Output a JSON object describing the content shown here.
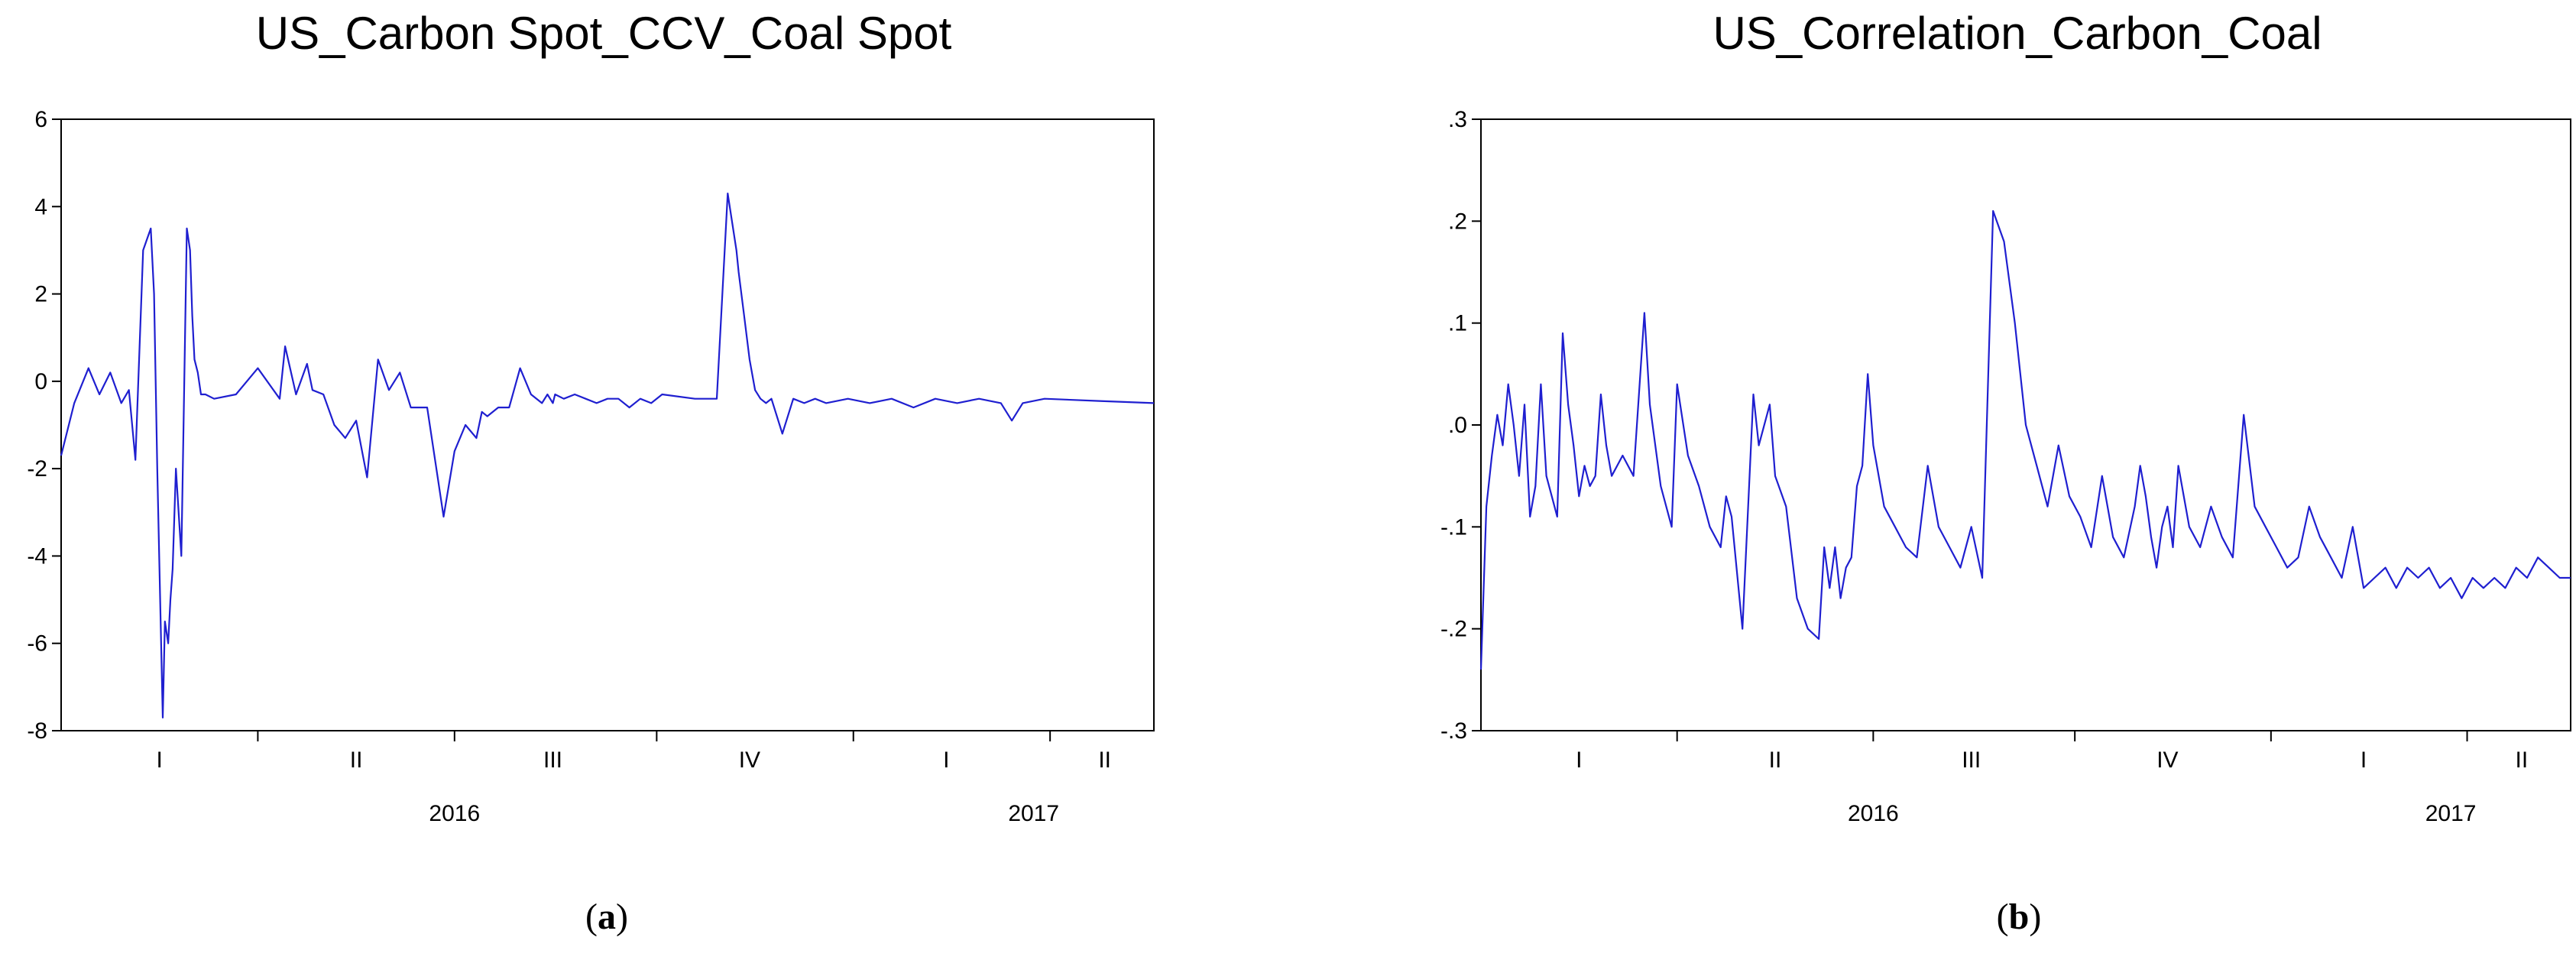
{
  "chart_data": [
    {
      "type": "line",
      "title": "US_Carbon Spot_CCV_Coal Spot",
      "caption": "a",
      "ylim": [
        -8,
        6
      ],
      "yticks": [
        {
          "v": 6,
          "label": "6"
        },
        {
          "v": 4,
          "label": "4"
        },
        {
          "v": 2,
          "label": "2"
        },
        {
          "v": 0,
          "label": "0"
        },
        {
          "v": -2,
          "label": "-2"
        },
        {
          "v": -4,
          "label": "-4"
        },
        {
          "v": -6,
          "label": "-6"
        },
        {
          "v": -8,
          "label": "-8"
        }
      ],
      "quarter_labels": [
        {
          "t": 0.09,
          "label": "I"
        },
        {
          "t": 0.27,
          "label": "II"
        },
        {
          "t": 0.45,
          "label": "III"
        },
        {
          "t": 0.63,
          "label": "IV"
        },
        {
          "t": 0.81,
          "label": "I"
        },
        {
          "t": 0.955,
          "label": "II"
        }
      ],
      "year_labels": [
        {
          "t": 0.36,
          "label": "2016"
        },
        {
          "t": 0.89,
          "label": "2017"
        }
      ],
      "grid": false,
      "series": [
        {
          "color": "#1f1fd0",
          "t": [
            0,
            0.012,
            0.025,
            0.035,
            0.045,
            0.055,
            0.062,
            0.068,
            0.075,
            0.082,
            0.085,
            0.088,
            0.09,
            0.093,
            0.095,
            0.098,
            0.1,
            0.102,
            0.105,
            0.11,
            0.112,
            0.115,
            0.118,
            0.12,
            0.122,
            0.125,
            0.128,
            0.132,
            0.14,
            0.16,
            0.18,
            0.2,
            0.205,
            0.215,
            0.225,
            0.23,
            0.24,
            0.25,
            0.26,
            0.27,
            0.28,
            0.29,
            0.3,
            0.31,
            0.32,
            0.335,
            0.35,
            0.36,
            0.37,
            0.38,
            0.385,
            0.39,
            0.4,
            0.41,
            0.42,
            0.43,
            0.44,
            0.445,
            0.45,
            0.452,
            0.46,
            0.47,
            0.48,
            0.49,
            0.5,
            0.51,
            0.52,
            0.53,
            0.54,
            0.55,
            0.58,
            0.6,
            0.61,
            0.618,
            0.62,
            0.625,
            0.63,
            0.635,
            0.64,
            0.645,
            0.65,
            0.66,
            0.67,
            0.68,
            0.69,
            0.7,
            0.72,
            0.74,
            0.76,
            0.78,
            0.8,
            0.82,
            0.84,
            0.86,
            0.87,
            0.88,
            0.9,
            0.95,
            1.0
          ],
          "values": [
            -1.7,
            -0.5,
            0.3,
            -0.3,
            0.2,
            -0.5,
            -0.2,
            -1.8,
            3.0,
            3.5,
            2.0,
            -2.0,
            -4.3,
            -7.7,
            -5.5,
            -6.0,
            -5.0,
            -4.3,
            -2.0,
            -4.0,
            -1.0,
            3.5,
            3.0,
            1.5,
            0.5,
            0.2,
            -0.3,
            -0.3,
            -0.4,
            -0.3,
            0.3,
            -0.4,
            0.8,
            -0.3,
            0.4,
            -0.2,
            -0.3,
            -1.0,
            -1.3,
            -0.9,
            -2.2,
            0.5,
            -0.2,
            0.2,
            -0.6,
            -0.6,
            -3.1,
            -1.6,
            -1.0,
            -1.3,
            -0.7,
            -0.8,
            -0.6,
            -0.6,
            0.3,
            -0.3,
            -0.5,
            -0.3,
            -0.5,
            -0.3,
            -0.4,
            -0.3,
            -0.4,
            -0.5,
            -0.4,
            -0.4,
            -0.6,
            -0.4,
            -0.5,
            -0.3,
            -0.4,
            -0.4,
            4.3,
            3.0,
            2.5,
            1.5,
            0.5,
            -0.2,
            -0.4,
            -0.5,
            -0.4,
            -1.2,
            -0.4,
            -0.5,
            -0.4,
            -0.5,
            -0.4,
            -0.5,
            -0.4,
            -0.6,
            -0.4,
            -0.5,
            -0.4,
            -0.5,
            -0.9,
            -0.5,
            -0.4,
            -0.45,
            -0.5
          ]
        }
      ]
    },
    {
      "type": "line",
      "title": "US_Correlation_Carbon_Coal",
      "caption": "b",
      "ylim": [
        -0.3,
        0.3
      ],
      "yticks": [
        {
          "v": 0.3,
          "label": ".3"
        },
        {
          "v": 0.2,
          "label": ".2"
        },
        {
          "v": 0.1,
          "label": ".1"
        },
        {
          "v": 0.0,
          "label": ".0"
        },
        {
          "v": -0.1,
          "label": "-.1"
        },
        {
          "v": -0.2,
          "label": "-.2"
        },
        {
          "v": -0.3,
          "label": "-.3"
        }
      ],
      "quarter_labels": [
        {
          "t": 0.09,
          "label": "I"
        },
        {
          "t": 0.27,
          "label": "II"
        },
        {
          "t": 0.45,
          "label": "III"
        },
        {
          "t": 0.63,
          "label": "IV"
        },
        {
          "t": 0.81,
          "label": "I"
        },
        {
          "t": 0.955,
          "label": "II"
        }
      ],
      "year_labels": [
        {
          "t": 0.36,
          "label": "2016"
        },
        {
          "t": 0.89,
          "label": "2017"
        }
      ],
      "grid": false,
      "series": [
        {
          "color": "#1f1fd0",
          "t": [
            0,
            0.005,
            0.01,
            0.015,
            0.02,
            0.025,
            0.03,
            0.035,
            0.04,
            0.045,
            0.05,
            0.055,
            0.06,
            0.065,
            0.07,
            0.075,
            0.08,
            0.085,
            0.09,
            0.095,
            0.1,
            0.105,
            0.11,
            0.115,
            0.12,
            0.13,
            0.14,
            0.15,
            0.155,
            0.165,
            0.175,
            0.18,
            0.19,
            0.2,
            0.21,
            0.22,
            0.225,
            0.23,
            0.24,
            0.25,
            0.255,
            0.265,
            0.27,
            0.28,
            0.29,
            0.3,
            0.31,
            0.315,
            0.32,
            0.325,
            0.33,
            0.335,
            0.34,
            0.345,
            0.35,
            0.355,
            0.36,
            0.37,
            0.38,
            0.39,
            0.4,
            0.41,
            0.42,
            0.43,
            0.44,
            0.45,
            0.46,
            0.47,
            0.48,
            0.49,
            0.5,
            0.51,
            0.52,
            0.53,
            0.54,
            0.55,
            0.56,
            0.57,
            0.58,
            0.59,
            0.6,
            0.605,
            0.61,
            0.615,
            0.62,
            0.625,
            0.63,
            0.635,
            0.64,
            0.65,
            0.66,
            0.67,
            0.68,
            0.69,
            0.7,
            0.71,
            0.72,
            0.73,
            0.74,
            0.75,
            0.76,
            0.77,
            0.78,
            0.79,
            0.8,
            0.81,
            0.82,
            0.83,
            0.84,
            0.85,
            0.86,
            0.87,
            0.88,
            0.89,
            0.9,
            0.91,
            0.92,
            0.93,
            0.94,
            0.95,
            0.96,
            0.97,
            0.98,
            0.99,
            1.0
          ],
          "values": [
            -0.24,
            -0.08,
            -0.03,
            0.01,
            -0.02,
            0.04,
            0.0,
            -0.05,
            0.02,
            -0.09,
            -0.06,
            0.04,
            -0.05,
            -0.07,
            -0.09,
            0.09,
            0.02,
            -0.02,
            -0.07,
            -0.04,
            -0.06,
            -0.05,
            0.03,
            -0.02,
            -0.05,
            -0.03,
            -0.05,
            0.11,
            0.02,
            -0.06,
            -0.1,
            0.04,
            -0.03,
            -0.06,
            -0.1,
            -0.12,
            -0.07,
            -0.09,
            -0.2,
            0.03,
            -0.02,
            0.02,
            -0.05,
            -0.08,
            -0.17,
            -0.2,
            -0.21,
            -0.12,
            -0.16,
            -0.12,
            -0.17,
            -0.14,
            -0.13,
            -0.06,
            -0.04,
            0.05,
            -0.02,
            -0.08,
            -0.1,
            -0.12,
            -0.13,
            -0.04,
            -0.1,
            -0.12,
            -0.14,
            -0.1,
            -0.15,
            0.21,
            0.18,
            0.1,
            0.0,
            -0.04,
            -0.08,
            -0.02,
            -0.07,
            -0.09,
            -0.12,
            -0.05,
            -0.11,
            -0.13,
            -0.08,
            -0.04,
            -0.07,
            -0.11,
            -0.14,
            -0.1,
            -0.08,
            -0.12,
            -0.04,
            -0.1,
            -0.12,
            -0.08,
            -0.11,
            -0.13,
            0.01,
            -0.08,
            -0.1,
            -0.12,
            -0.14,
            -0.13,
            -0.08,
            -0.11,
            -0.13,
            -0.15,
            -0.1,
            -0.16,
            -0.15,
            -0.14,
            -0.16,
            -0.14,
            -0.15,
            -0.14,
            -0.16,
            -0.15,
            -0.17,
            -0.15,
            -0.16,
            -0.15,
            -0.16,
            -0.14,
            -0.15,
            -0.13,
            -0.14,
            -0.15,
            -0.15
          ]
        }
      ]
    }
  ]
}
